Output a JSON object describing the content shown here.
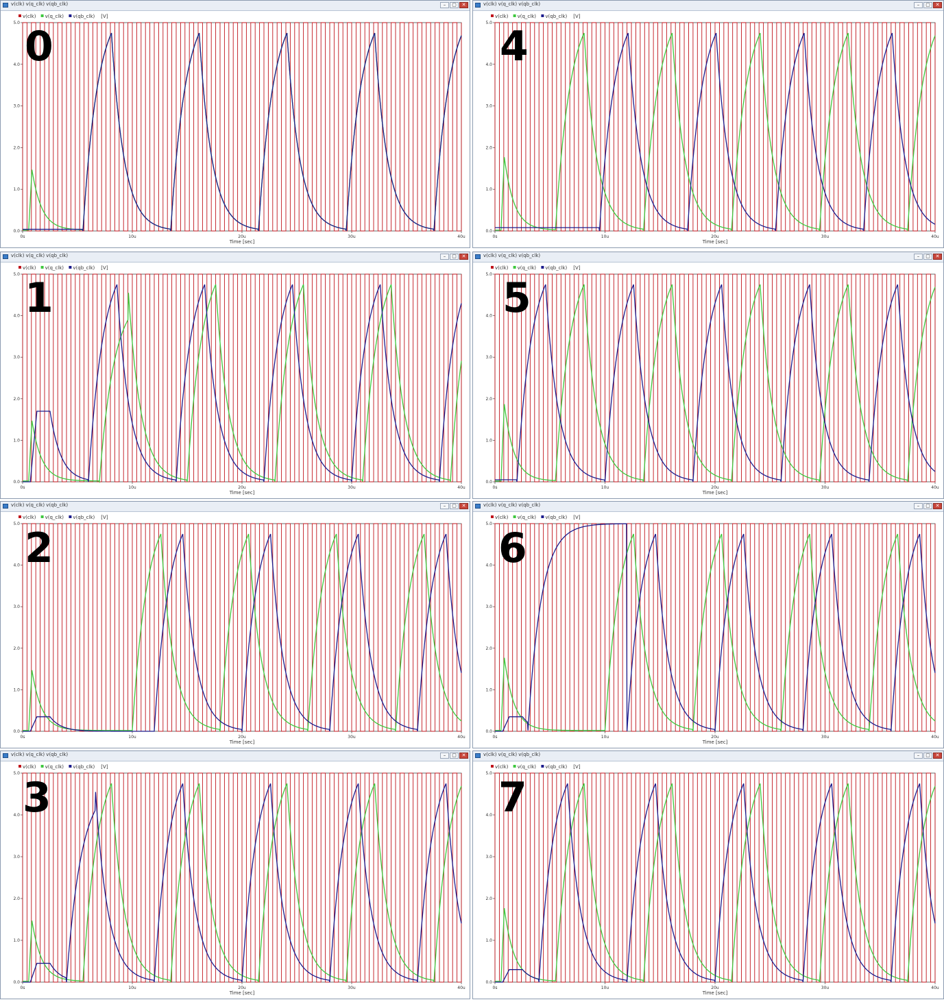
{
  "colors": {
    "clk": "#c0141c",
    "q": "#3ec83e",
    "qb": "#1c1c8c"
  },
  "chart_data": [
    {
      "type": "line",
      "panel_label": "0",
      "window_title": "v(clk) v(q_clk) v(qb_clk)",
      "legend": [
        "v(clk)",
        "v(q_clk)",
        "v(qb_clk)"
      ],
      "unit_label": "[V]",
      "xlabel": "Time [sec]",
      "x_ticks": [
        "0s",
        "10u",
        "20u",
        "30u",
        "40u"
      ],
      "y_ticks": [
        "0.0",
        "1.0",
        "2.0",
        "3.0",
        "4.0",
        "5.0"
      ],
      "xlim": [
        0,
        40
      ],
      "ylim": [
        0,
        5
      ],
      "q_pulse": 1.45,
      "q_cycle_start": 5.5,
      "qb_pulse": 0.04,
      "qb_start": 5.5,
      "phase_offset": 0
    },
    {
      "type": "line",
      "panel_label": "1",
      "window_title": "v(clk) v(q_clk) v(qb_clk)",
      "legend": [
        "v(clk)",
        "v(q_clk)",
        "v(qb_clk)"
      ],
      "unit_label": "[V]",
      "xlabel": "Time [sec]",
      "x_ticks": [
        "0s",
        "10u",
        "20u",
        "30u",
        "40u"
      ],
      "y_ticks": [
        "0.0",
        "1.0",
        "2.0",
        "3.0",
        "4.0",
        "5.0"
      ],
      "xlim": [
        0,
        40
      ],
      "ylim": [
        0,
        5
      ],
      "q_pulse": 1.45,
      "q_cycle_start": 7.0,
      "q_first_peak": 3.9,
      "qb_pulse": 1.7,
      "qb_start": 6.0,
      "phase_offset": 0.8
    },
    {
      "type": "line",
      "panel_label": "2",
      "window_title": "v(clk) v(q_clk) v(qb_clk)",
      "legend": [
        "v(clk)",
        "v(q_clk)",
        "v(qb_clk)"
      ],
      "unit_label": "[V]",
      "xlabel": "Time [sec]",
      "x_ticks": [
        "0s",
        "10u",
        "20u",
        "30u",
        "40u"
      ],
      "y_ticks": [
        "0.0",
        "1.0",
        "2.0",
        "3.0",
        "4.0",
        "5.0"
      ],
      "xlim": [
        0,
        40
      ],
      "ylim": [
        0,
        5
      ],
      "q_pulse": 1.45,
      "q_cycle_start": 10.0,
      "qb_pulse": 0.35,
      "qb_start": 12.0,
      "phase_offset": 2.2
    },
    {
      "type": "line",
      "panel_label": "3",
      "window_title": "v(clk) v(q_clk) v(qb_clk)",
      "legend": [
        "v(clk)",
        "v(q_clk)",
        "v(qb_clk)"
      ],
      "unit_label": "[V]",
      "xlabel": "Time [sec]",
      "x_ticks": [
        "0s",
        "10u",
        "20u",
        "30u",
        "40u"
      ],
      "y_ticks": [
        "0.0",
        "1.0",
        "2.0",
        "3.0",
        "4.0",
        "5.0"
      ],
      "xlim": [
        0,
        40
      ],
      "ylim": [
        0,
        5
      ],
      "q_pulse": 1.45,
      "q_cycle_start": 5.5,
      "qb_pulse": 0.45,
      "qb_start": 1.0,
      "qb_first_peak": 4.1,
      "phase_offset": 2.5
    },
    {
      "type": "line",
      "panel_label": "4",
      "window_title": "v(clk) v(q_clk) v(qb_clk)",
      "legend": [
        "v(clk)",
        "v(q_clk)",
        "v(qb_clk)"
      ],
      "unit_label": "[V]",
      "xlabel": "Time [sec]",
      "x_ticks": [
        "0s",
        "10u",
        "20u",
        "30u",
        "40u"
      ],
      "y_ticks": [
        "0.0",
        "1.0",
        "2.0",
        "3.0",
        "4.0",
        "5.0"
      ],
      "xlim": [
        0,
        40
      ],
      "ylim": [
        0,
        5
      ],
      "q_pulse": 1.75,
      "q_cycle_start": 5.5,
      "qb_pulse": 0.08,
      "qb_start": 9.5,
      "phase_offset": 4.3
    },
    {
      "type": "line",
      "panel_label": "5",
      "window_title": "v(clk) v(q_clk) v(qb_clk)",
      "legend": [
        "v(clk)",
        "v(q_clk)",
        "v(qb_clk)"
      ],
      "unit_label": "[V]",
      "xlabel": "Time [sec]",
      "x_ticks": [
        "0s",
        "10u",
        "20u",
        "30u",
        "40u"
      ],
      "y_ticks": [
        "0.0",
        "1.0",
        "2.0",
        "3.0",
        "4.0",
        "5.0"
      ],
      "xlim": [
        0,
        40
      ],
      "ylim": [
        0,
        5
      ],
      "q_pulse": 1.85,
      "q_cycle_start": 5.5,
      "qb_pulse": 0.05,
      "qb_start": 2.0,
      "phase_offset": -2.6
    },
    {
      "type": "line",
      "panel_label": "6",
      "window_title": "v(clk) v(q_clk) v(qb_clk)",
      "legend": [
        "v(clk)",
        "v(q_clk)",
        "v(qb_clk)"
      ],
      "unit_label": "[V]",
      "xlabel": "Time [sec]",
      "x_ticks": [
        "0s",
        "10u",
        "20u",
        "30u",
        "40u"
      ],
      "y_ticks": [
        "0.0",
        "1.0",
        "2.0",
        "3.0",
        "4.0",
        "5.0"
      ],
      "xlim": [
        0,
        40
      ],
      "ylim": [
        0,
        5
      ],
      "q_pulse": 1.75,
      "q_cycle_start": 10.0,
      "qb_pulse": 0.35,
      "qb_start": 3.0,
      "qb_hold_until": 12.0,
      "phase_offset": -1.9
    },
    {
      "type": "line",
      "panel_label": "7",
      "window_title": "v(clk) v(q_clk) v(qb_clk)",
      "legend": [
        "v(clk)",
        "v(q_clk)",
        "v(qb_clk)"
      ],
      "unit_label": "[V]",
      "xlabel": "Time [sec]",
      "x_ticks": [
        "0s",
        "10u",
        "20u",
        "30u",
        "40u"
      ],
      "y_ticks": [
        "0.0",
        "1.0",
        "2.0",
        "3.0",
        "4.0",
        "5.0"
      ],
      "xlim": [
        0,
        40
      ],
      "ylim": [
        0,
        5
      ],
      "q_pulse": 1.75,
      "q_cycle_start": 5.5,
      "qb_pulse": 0.3,
      "qb_start": 4.0,
      "phase_offset": -0.8
    }
  ]
}
